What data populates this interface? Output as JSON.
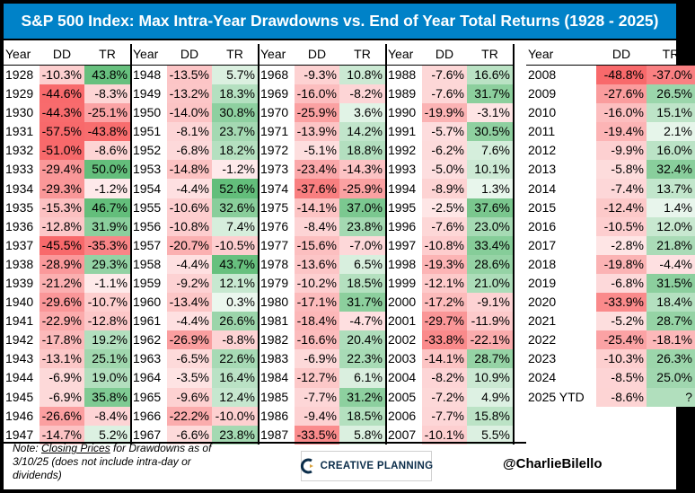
{
  "title": "S&P 500 Index: Max Intra-Year Drawdowns vs. End of Year Total Returns (1928 - 2025)",
  "headers": {
    "year": "Year",
    "dd": "DD",
    "tr": "TR"
  },
  "columns": [
    [
      [
        "1928",
        "-10.3%",
        "43.8%"
      ],
      [
        "1929",
        "-44.6%",
        "-8.3%"
      ],
      [
        "1930",
        "-44.3%",
        "-25.1%"
      ],
      [
        "1931",
        "-57.5%",
        "-43.8%"
      ],
      [
        "1932",
        "-51.0%",
        "-8.6%"
      ],
      [
        "1933",
        "-29.4%",
        "50.0%"
      ],
      [
        "1934",
        "-29.3%",
        "-1.2%"
      ],
      [
        "1935",
        "-15.3%",
        "46.7%"
      ],
      [
        "1936",
        "-12.8%",
        "31.9%"
      ],
      [
        "1937",
        "-45.5%",
        "-35.3%"
      ],
      [
        "1938",
        "-28.9%",
        "29.3%"
      ],
      [
        "1939",
        "-21.2%",
        "-1.1%"
      ],
      [
        "1940",
        "-29.6%",
        "-10.7%"
      ],
      [
        "1941",
        "-22.9%",
        "-12.8%"
      ],
      [
        "1942",
        "-17.8%",
        "19.2%"
      ],
      [
        "1943",
        "-13.1%",
        "25.1%"
      ],
      [
        "1944",
        "-6.9%",
        "19.0%"
      ],
      [
        "1945",
        "-6.9%",
        "35.8%"
      ],
      [
        "1946",
        "-26.6%",
        "-8.4%"
      ],
      [
        "1947",
        "-14.7%",
        "5.2%"
      ]
    ],
    [
      [
        "1948",
        "-13.5%",
        "5.7%"
      ],
      [
        "1949",
        "-13.2%",
        "18.3%"
      ],
      [
        "1950",
        "-14.0%",
        "30.8%"
      ],
      [
        "1951",
        "-8.1%",
        "23.7%"
      ],
      [
        "1952",
        "-6.8%",
        "18.2%"
      ],
      [
        "1953",
        "-14.8%",
        "-1.2%"
      ],
      [
        "1954",
        "-4.4%",
        "52.6%"
      ],
      [
        "1955",
        "-10.6%",
        "32.6%"
      ],
      [
        "1956",
        "-10.8%",
        "7.4%"
      ],
      [
        "1957",
        "-20.7%",
        "-10.5%"
      ],
      [
        "1958",
        "-4.4%",
        "43.7%"
      ],
      [
        "1959",
        "-9.2%",
        "12.1%"
      ],
      [
        "1960",
        "-13.4%",
        "0.3%"
      ],
      [
        "1961",
        "-4.4%",
        "26.6%"
      ],
      [
        "1962",
        "-26.9%",
        "-8.8%"
      ],
      [
        "1963",
        "-6.5%",
        "22.6%"
      ],
      [
        "1964",
        "-3.5%",
        "16.4%"
      ],
      [
        "1965",
        "-9.6%",
        "12.4%"
      ],
      [
        "1966",
        "-22.2%",
        "-10.0%"
      ],
      [
        "1967",
        "-6.6%",
        "23.8%"
      ]
    ],
    [
      [
        "1968",
        "-9.3%",
        "10.8%"
      ],
      [
        "1969",
        "-16.0%",
        "-8.2%"
      ],
      [
        "1970",
        "-25.9%",
        "3.6%"
      ],
      [
        "1971",
        "-13.9%",
        "14.2%"
      ],
      [
        "1972",
        "-5.1%",
        "18.8%"
      ],
      [
        "1973",
        "-23.4%",
        "-14.3%"
      ],
      [
        "1974",
        "-37.6%",
        "-25.9%"
      ],
      [
        "1975",
        "-14.1%",
        "37.0%"
      ],
      [
        "1976",
        "-8.4%",
        "23.8%"
      ],
      [
        "1977",
        "-15.6%",
        "-7.0%"
      ],
      [
        "1978",
        "-13.6%",
        "6.5%"
      ],
      [
        "1979",
        "-10.2%",
        "18.5%"
      ],
      [
        "1980",
        "-17.1%",
        "31.7%"
      ],
      [
        "1981",
        "-18.4%",
        "-4.7%"
      ],
      [
        "1982",
        "-16.6%",
        "20.4%"
      ],
      [
        "1983",
        "-6.9%",
        "22.3%"
      ],
      [
        "1984",
        "-12.7%",
        "6.1%"
      ],
      [
        "1985",
        "-7.7%",
        "31.2%"
      ],
      [
        "1986",
        "-9.4%",
        "18.5%"
      ],
      [
        "1987",
        "-33.5%",
        "5.8%"
      ]
    ],
    [
      [
        "1988",
        "-7.6%",
        "16.6%"
      ],
      [
        "1989",
        "-7.6%",
        "31.7%"
      ],
      [
        "1990",
        "-19.9%",
        "-3.1%"
      ],
      [
        "1991",
        "-5.7%",
        "30.5%"
      ],
      [
        "1992",
        "-6.2%",
        "7.6%"
      ],
      [
        "1993",
        "-5.0%",
        "10.1%"
      ],
      [
        "1994",
        "-8.9%",
        "1.3%"
      ],
      [
        "1995",
        "-2.5%",
        "37.6%"
      ],
      [
        "1996",
        "-7.6%",
        "23.0%"
      ],
      [
        "1997",
        "-10.8%",
        "33.4%"
      ],
      [
        "1998",
        "-19.3%",
        "28.6%"
      ],
      [
        "1999",
        "-12.1%",
        "21.0%"
      ],
      [
        "2000",
        "-17.2%",
        "-9.1%"
      ],
      [
        "2001",
        "-29.7%",
        "-11.9%"
      ],
      [
        "2002",
        "-33.8%",
        "-22.1%"
      ],
      [
        "2003",
        "-14.1%",
        "28.7%"
      ],
      [
        "2004",
        "-8.2%",
        "10.9%"
      ],
      [
        "2005",
        "-7.2%",
        "4.9%"
      ],
      [
        "2006",
        "-7.7%",
        "15.8%"
      ],
      [
        "2007",
        "-10.1%",
        "5.5%"
      ]
    ],
    [
      [
        "2008",
        "-48.8%",
        "-37.0%"
      ],
      [
        "2009",
        "-27.6%",
        "26.5%"
      ],
      [
        "2010",
        "-16.0%",
        "15.1%"
      ],
      [
        "2011",
        "-19.4%",
        "2.1%"
      ],
      [
        "2012",
        "-9.9%",
        "16.0%"
      ],
      [
        "2013",
        "-5.8%",
        "32.4%"
      ],
      [
        "2014",
        "-7.4%",
        "13.7%"
      ],
      [
        "2015",
        "-12.4%",
        "1.4%"
      ],
      [
        "2016",
        "-10.5%",
        "12.0%"
      ],
      [
        "2017",
        "-2.8%",
        "21.8%"
      ],
      [
        "2018",
        "-19.8%",
        "-4.4%"
      ],
      [
        "2019",
        "-6.8%",
        "31.5%"
      ],
      [
        "2020",
        "-33.9%",
        "18.4%"
      ],
      [
        "2021",
        "-5.2%",
        "28.7%"
      ],
      [
        "2022",
        "-25.4%",
        "-18.1%"
      ],
      [
        "2023",
        "-10.3%",
        "26.3%"
      ],
      [
        "2024",
        "-8.5%",
        "25.0%"
      ],
      [
        "2025 YTD",
        "-8.6%",
        "?"
      ]
    ]
  ],
  "footer": {
    "note_prefix": "Note: ",
    "note_link": "Closing Prices",
    "note_rest": " for Drawdowns as of 3/10/25 (does not include intra-day or dividends)",
    "logo_text": "CREATIVE PLANNING",
    "handle": "@CharlieBilello"
  },
  "colors": {
    "title_bg": "#0082c8",
    "negative": "#f8696b",
    "neutral": "#ffffff",
    "positive": "#63be7b"
  }
}
